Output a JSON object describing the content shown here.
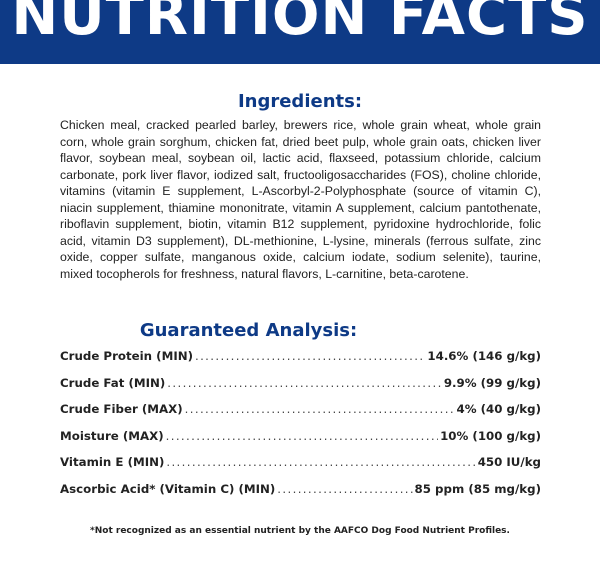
{
  "header": {
    "title": "NUTRITION FACTS",
    "background_color": "#0e3a86"
  },
  "ingredients": {
    "heading": "Ingredients:",
    "text": "Chicken meal, cracked pearled barley, brewers rice, whole grain wheat, whole grain corn, whole grain sorghum, chicken fat, dried beet pulp, whole grain oats, chicken liver flavor, soybean meal, soybean oil, lactic acid, flaxseed, potassium chloride, calcium carbonate, pork liver flavor, iodized salt, fructooligosaccharides (FOS), choline chloride, vitamins (vitamin E supplement, L-Ascorbyl-2-Polyphosphate (source of vitamin C), niacin supplement, thiamine mononitrate, vitamin A supplement, calcium pantothenate, riboflavin supplement, biotin, vitamin B12 supplement, pyridoxine hydrochloride, folic acid, vitamin D3 supplement), DL-methionine, L-lysine, minerals (ferrous sulfate, zinc oxide, copper sulfate, manganous oxide, calcium iodate, sodium selenite), taurine, mixed tocopherols for freshness, natural flavors, L-carnitine, beta-carotene."
  },
  "analysis": {
    "heading": "Guaranteed Analysis:",
    "rows": [
      {
        "label": "Crude Protein (MIN)",
        "value": "14.6% (146 g/kg)"
      },
      {
        "label": "Crude Fat (MIN)",
        "value": "9.9% (99 g/kg)"
      },
      {
        "label": "Crude Fiber (MAX)",
        "value": "4% (40 g/kg)"
      },
      {
        "label": "Moisture (MAX)",
        "value": "10% (100 g/kg)"
      },
      {
        "label": "Vitamin E (MIN)",
        "value": "450 IU/kg"
      },
      {
        "label": "Ascorbic Acid* (Vitamin C) (MIN)",
        "value": "85 ppm (85 mg/kg)"
      }
    ]
  },
  "footnote": "*Not recognized as an essential nutrient by the AAFCO Dog Food Nutrient Profiles.",
  "colors": {
    "accent": "#0e3a86",
    "text": "#222222"
  }
}
